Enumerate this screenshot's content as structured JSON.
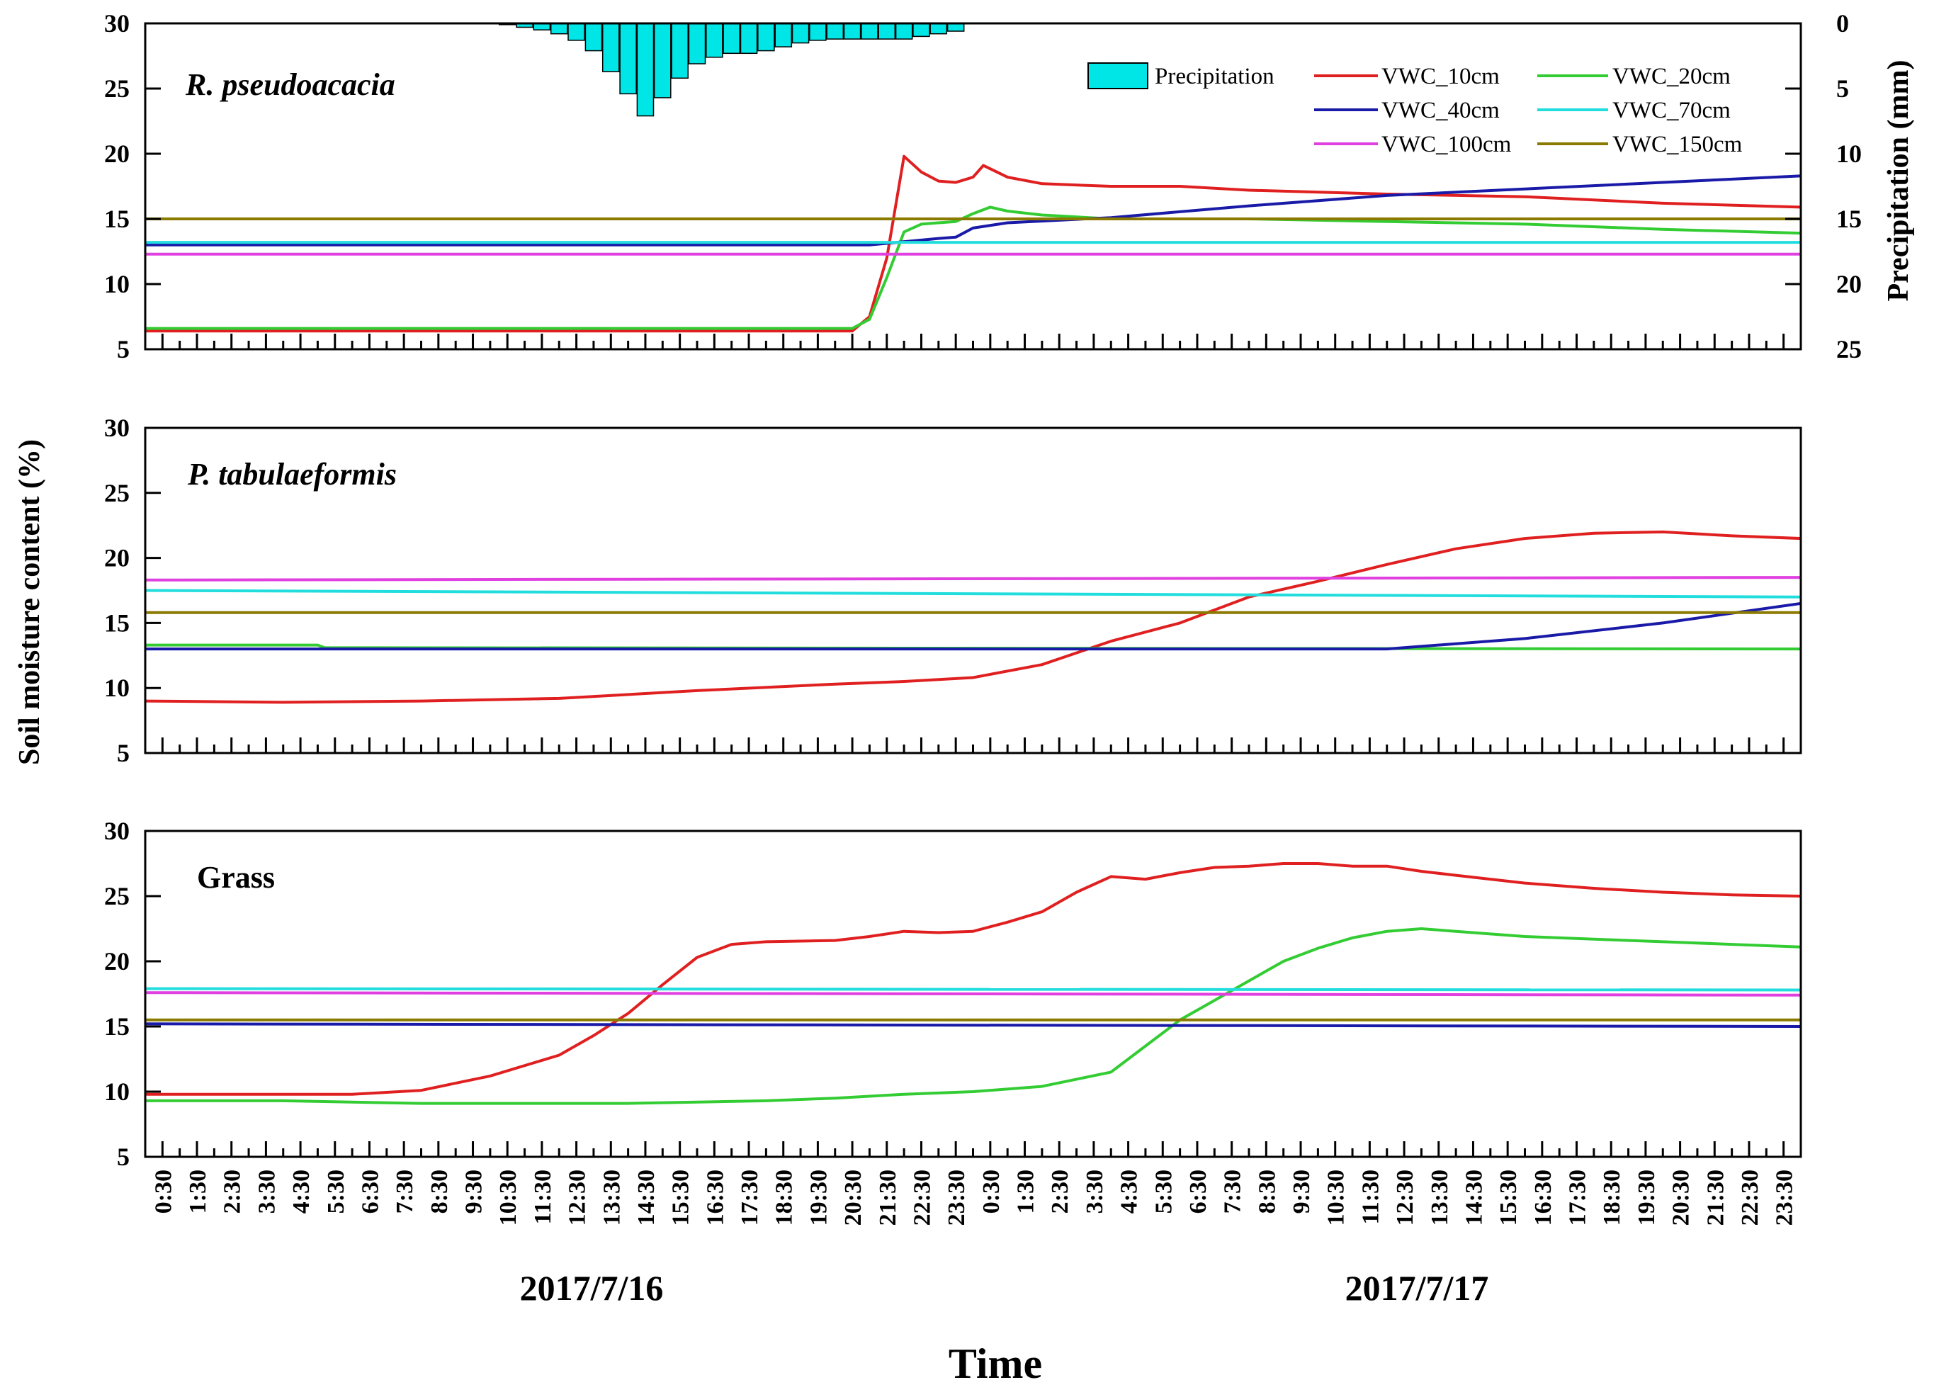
{
  "chart_data": {
    "type": "line",
    "figure_y_label": "Soil moisture content (%)",
    "figure_x_label": "Time",
    "date_labels": [
      "2017/7/16",
      "2017/7/17"
    ],
    "time_tick_labels": [
      "0:30",
      "1:30",
      "2:30",
      "3:30",
      "4:30",
      "5:30",
      "6:30",
      "7:30",
      "8:30",
      "9:30",
      "10:30",
      "11:30",
      "12:30",
      "13:30",
      "14:30",
      "15:30",
      "16:30",
      "17:30",
      "18:30",
      "19:30",
      "20:30",
      "21:30",
      "22:30",
      "23:30",
      "0:30",
      "1:30",
      "2:30",
      "3:30",
      "4:30",
      "5:30",
      "6:30",
      "7:30",
      "8:30",
      "9:30",
      "10:30",
      "11:30",
      "12:30",
      "13:30",
      "14:30",
      "15:30",
      "16:30",
      "17:30",
      "18:30",
      "19:30",
      "20:30",
      "21:30",
      "22:30",
      "23:30"
    ],
    "x_hours_range": [
      0,
      48
    ],
    "ylim": [
      5,
      30
    ],
    "yticks": [
      5,
      10,
      15,
      20,
      25,
      30
    ],
    "precipitation_axis": {
      "label": "Precipitation (mm)",
      "ylim_inverted": [
        0,
        25
      ],
      "ticks": [
        0,
        5,
        10,
        15,
        20,
        25
      ]
    },
    "legend": [
      {
        "name": "Precipitation",
        "color": "#00e5e5",
        "kind": "bar"
      },
      {
        "name": "VWC_10cm",
        "color": "#e02020",
        "kind": "line"
      },
      {
        "name": "VWC_20cm",
        "color": "#33cc33",
        "kind": "line"
      },
      {
        "name": "VWC_40cm",
        "color": "#1a1aa8",
        "kind": "line"
      },
      {
        "name": "VWC_70cm",
        "color": "#22dddd",
        "kind": "line"
      },
      {
        "name": "VWC_100cm",
        "color": "#e040e0",
        "kind": "line"
      },
      {
        "name": "VWC_150cm",
        "color": "#8b7a00",
        "kind": "line"
      }
    ],
    "panels": [
      {
        "title": "R. pseudoacacia",
        "precipitation": {
          "x": [
            10.5,
            11,
            11.5,
            12,
            12.5,
            13,
            13.5,
            14,
            14.5,
            15,
            15.5,
            16,
            16.5,
            17,
            17.5,
            18,
            18.5,
            19,
            19.5,
            20,
            20.5,
            21,
            21.5,
            22,
            22.5,
            23,
            23.5
          ],
          "values": [
            0.1,
            0.3,
            0.5,
            0.8,
            1.3,
            2.1,
            3.7,
            5.4,
            7.1,
            5.7,
            4.2,
            3.1,
            2.6,
            2.3,
            2.3,
            2.1,
            1.8,
            1.5,
            1.3,
            1.2,
            1.2,
            1.2,
            1.2,
            1.2,
            1.0,
            0.8,
            0.6
          ]
        },
        "series": [
          {
            "name": "VWC_10cm",
            "x": [
              0,
              20.5,
              21,
              21.5,
              22,
              22.5,
              23,
              23.5,
              24,
              24.3,
              25,
              26,
              28,
              30,
              32,
              36,
              40,
              44,
              48
            ],
            "values": [
              6.4,
              6.4,
              7.5,
              12,
              19.8,
              18.6,
              17.9,
              17.8,
              18.2,
              19.1,
              18.2,
              17.7,
              17.5,
              17.5,
              17.2,
              16.9,
              16.7,
              16.2,
              15.9
            ]
          },
          {
            "name": "VWC_20cm",
            "x": [
              0,
              20.5,
              21,
              21.5,
              22,
              22.5,
              23,
              23.5,
              24,
              24.5,
              25,
              26,
              28,
              32,
              36,
              40,
              44,
              48
            ],
            "values": [
              6.6,
              6.6,
              7.3,
              10.5,
              14,
              14.6,
              14.7,
              14.8,
              15.4,
              15.9,
              15.6,
              15.3,
              15.0,
              15.0,
              14.8,
              14.6,
              14.2,
              13.9
            ]
          },
          {
            "name": "VWC_40cm",
            "x": [
              0,
              21,
              23,
              23.5,
              24,
              25,
              28,
              32,
              36,
              40,
              44,
              48
            ],
            "values": [
              13.0,
              13.0,
              13.5,
              13.6,
              14.3,
              14.7,
              15.1,
              16.0,
              16.8,
              17.3,
              17.8,
              18.3
            ]
          },
          {
            "name": "VWC_70cm",
            "x": [
              0,
              48
            ],
            "values": [
              13.2,
              13.2
            ]
          },
          {
            "name": "VWC_100cm",
            "x": [
              0,
              48
            ],
            "values": [
              12.3,
              12.3
            ]
          },
          {
            "name": "VWC_150cm",
            "x": [
              0,
              48
            ],
            "values": [
              15.0,
              15.0
            ]
          }
        ]
      },
      {
        "title": "P. tabulaeformis",
        "series": [
          {
            "name": "VWC_10cm",
            "x": [
              0,
              4,
              8,
              12,
              16,
              20,
              22,
              24,
              26,
              28,
              30,
              32,
              34,
              36,
              38,
              40,
              42,
              44,
              46,
              48
            ],
            "values": [
              9.0,
              8.9,
              9.0,
              9.2,
              9.8,
              10.3,
              10.5,
              10.8,
              11.8,
              13.6,
              15.0,
              17.0,
              18.2,
              19.5,
              20.7,
              21.5,
              21.9,
              22.0,
              21.7,
              21.5
            ]
          },
          {
            "name": "VWC_20cm",
            "x": [
              0,
              5,
              5.2,
              48
            ],
            "values": [
              13.3,
              13.3,
              13.1,
              13.0
            ]
          },
          {
            "name": "VWC_40cm",
            "x": [
              0,
              36,
              37,
              40,
              44,
              48
            ],
            "values": [
              13.0,
              13.0,
              13.2,
              13.8,
              15.0,
              16.5
            ]
          },
          {
            "name": "VWC_70cm",
            "x": [
              0,
              48
            ],
            "values": [
              17.5,
              17.0
            ]
          },
          {
            "name": "VWC_100cm",
            "x": [
              0,
              48
            ],
            "values": [
              18.3,
              18.5
            ]
          },
          {
            "name": "VWC_150cm",
            "x": [
              0,
              48
            ],
            "values": [
              15.8,
              15.8
            ]
          }
        ]
      },
      {
        "title": "Grass",
        "series": [
          {
            "name": "VWC_10cm",
            "x": [
              0,
              6,
              8,
              10,
              12,
              13,
              14,
              15,
              16,
              17,
              18,
              20,
              21,
              22,
              23,
              24,
              25,
              26,
              27,
              28,
              29,
              30,
              31,
              32,
              33,
              34,
              35,
              36,
              37,
              38,
              40,
              42,
              44,
              46,
              48
            ],
            "values": [
              9.8,
              9.8,
              10.1,
              11.2,
              12.8,
              14.3,
              16.0,
              18.2,
              20.3,
              21.3,
              21.5,
              21.6,
              21.9,
              22.3,
              22.2,
              22.3,
              23.0,
              23.8,
              25.3,
              26.5,
              26.3,
              26.8,
              27.2,
              27.3,
              27.5,
              27.5,
              27.3,
              27.3,
              26.9,
              26.6,
              26.0,
              25.6,
              25.3,
              25.1,
              25.0
            ]
          },
          {
            "name": "VWC_20cm",
            "x": [
              0,
              4,
              8,
              12,
              14,
              16,
              18,
              20,
              22,
              24,
              26,
              28,
              29,
              30,
              31,
              32,
              33,
              34,
              35,
              36,
              37,
              38,
              39,
              40,
              42,
              44,
              46,
              48
            ],
            "values": [
              9.3,
              9.3,
              9.1,
              9.1,
              9.1,
              9.2,
              9.3,
              9.5,
              9.8,
              10.0,
              10.4,
              11.5,
              13.5,
              15.5,
              17.0,
              18.5,
              20.0,
              21.0,
              21.8,
              22.3,
              22.5,
              22.3,
              22.1,
              21.9,
              21.7,
              21.5,
              21.3,
              21.1
            ]
          },
          {
            "name": "VWC_40cm",
            "x": [
              0,
              48
            ],
            "values": [
              15.2,
              15.0
            ]
          },
          {
            "name": "VWC_70cm",
            "x": [
              0,
              48
            ],
            "values": [
              17.9,
              17.8
            ]
          },
          {
            "name": "VWC_100cm",
            "x": [
              0,
              48
            ],
            "values": [
              17.6,
              17.4
            ]
          },
          {
            "name": "VWC_150cm",
            "x": [
              0,
              48
            ],
            "values": [
              15.5,
              15.5
            ]
          }
        ]
      }
    ]
  }
}
